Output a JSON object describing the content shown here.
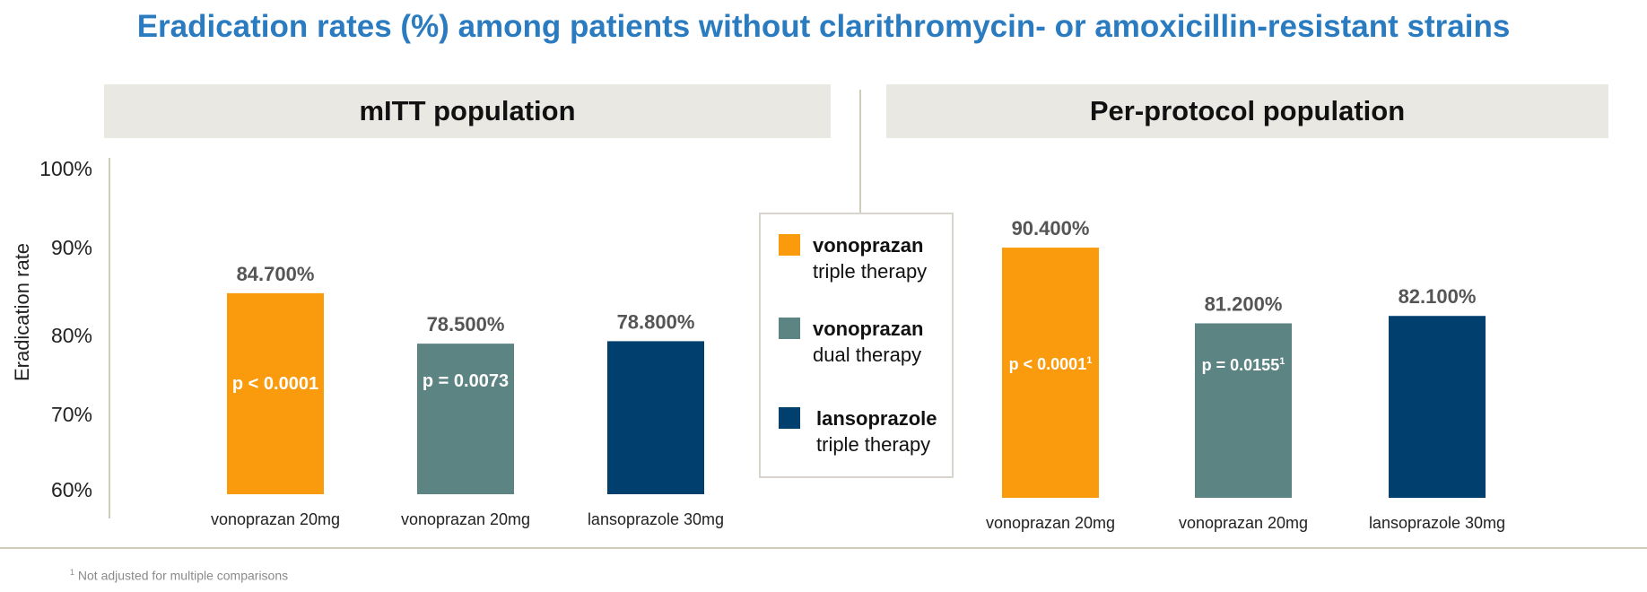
{
  "title": "Eradication rates (%) among patients without clarithromycin- or amoxicillin-resistant strains",
  "panels": [
    {
      "header": "mITT population"
    },
    {
      "header": "Per-protocol population"
    }
  ],
  "y_axis": {
    "label": "Eradication rate",
    "ticks": [
      "100%",
      "90%",
      "80%",
      "70%",
      "60%"
    ]
  },
  "legend": [
    {
      "name": "vonoprazan",
      "sub": "triple therapy",
      "color": "#f99b0c"
    },
    {
      "name": "vonoprazan",
      "sub": "dual therapy",
      "color": "#5c8482"
    },
    {
      "name": "lansoprazole",
      "sub": "triple therapy",
      "color": "#003f6e"
    }
  ],
  "footnote": {
    "marker": "1",
    "text": "Not adjusted for multiple comparisons"
  },
  "chart_data": [
    {
      "type": "bar",
      "title": "mITT population",
      "ylabel": "Eradication rate",
      "ylim": [
        60,
        100
      ],
      "categories": [
        "vonoprazan 20mg",
        "vonoprazan 20mg",
        "lansoprazole 30mg"
      ],
      "values": [
        84.7,
        78.5,
        78.8
      ],
      "value_labels": [
        "84.700%",
        "78.500%",
        "78.800%"
      ],
      "bar_annotations": [
        "p < 0.0001",
        "p = 0.0073",
        ""
      ],
      "colors": [
        "#f99b0c",
        "#5c8482",
        "#003f6e"
      ]
    },
    {
      "type": "bar",
      "title": "Per-protocol population",
      "ylim": [
        60,
        100
      ],
      "categories": [
        "vonoprazan 20mg",
        "vonoprazan 20mg",
        "lansoprazole 30mg"
      ],
      "values": [
        90.4,
        81.2,
        82.1
      ],
      "value_labels": [
        "90.400%",
        "81.200%",
        "82.100%"
      ],
      "bar_annotations": [
        "p < 0.0001",
        "p = 0.0155",
        ""
      ],
      "annotation_superscript": "1",
      "colors": [
        "#f99b0c",
        "#5c8482",
        "#003f6e"
      ]
    }
  ]
}
